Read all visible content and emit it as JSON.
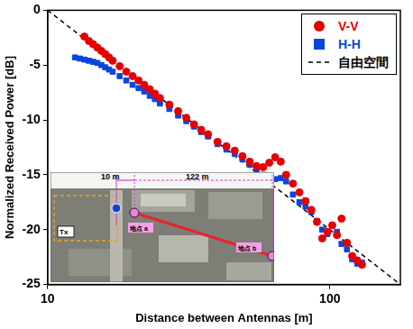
{
  "chart_data": {
    "type": "scatter",
    "x_label": "Distance between Antennas [m]",
    "y_label": "Normalized Received Power [dB]",
    "log": "x",
    "grid": false,
    "legend": "upper right",
    "xlim": [
      10,
      177.8
    ],
    "xticks": [
      10,
      100
    ],
    "ylim": [
      -25,
      0
    ],
    "yticks": [
      -25,
      -20,
      -15,
      -10,
      -5,
      0
    ],
    "annotations": [
      "10 m",
      "122 m",
      "Tx",
      "地点 a",
      "地点 b"
    ],
    "series": [
      {
        "name": "V-V",
        "color": "#e60000",
        "marker": "circle",
        "x": [
          13.5,
          14,
          14.5,
          15,
          15.5,
          16,
          16.5,
          17,
          18,
          19,
          20,
          21,
          22,
          23,
          24,
          25,
          27,
          29,
          31,
          33,
          35,
          37,
          40,
          43,
          46,
          49,
          52,
          55,
          58,
          61,
          64,
          67,
          70,
          74,
          78,
          82,
          86,
          90,
          94,
          98,
          102,
          106,
          110,
          115,
          120,
          125,
          130
        ],
        "values": [
          -2.4,
          -2.8,
          -3.1,
          -3.4,
          -3.7,
          -4.0,
          -4.3,
          -4.6,
          -5.1,
          -5.6,
          -6.0,
          -6.4,
          -6.8,
          -7.2,
          -7.6,
          -8.0,
          -8.6,
          -9.2,
          -9.8,
          -10.4,
          -10.9,
          -11.3,
          -12.0,
          -12.4,
          -12.8,
          -13.3,
          -13.8,
          -14.2,
          -14.3,
          -13.9,
          -13.4,
          -13.8,
          -15.0,
          -15.8,
          -16.6,
          -17.4,
          -18.2,
          -19.3,
          -20.8,
          -20.2,
          -19.6,
          -20.5,
          -19.0,
          -21.2,
          -22.4,
          -22.8,
          -23.2
        ]
      },
      {
        "name": "H-H",
        "color": "#0a46dc",
        "marker": "square",
        "x": [
          12.5,
          13,
          13.5,
          14,
          14.5,
          15,
          15.5,
          16,
          16.5,
          17,
          18,
          19,
          20,
          21,
          22,
          23,
          24,
          25,
          27,
          29,
          31,
          33,
          35,
          37,
          40,
          43,
          46,
          49,
          52,
          55,
          58,
          61,
          64,
          67,
          70,
          74,
          78,
          82,
          86,
          90,
          94,
          98,
          102,
          106,
          110,
          115,
          120,
          125,
          130
        ],
        "values": [
          -4.3,
          -4.4,
          -4.5,
          -4.6,
          -4.7,
          -4.8,
          -5.0,
          -5.2,
          -5.4,
          -5.6,
          -6.0,
          -6.4,
          -6.8,
          -7.1,
          -7.4,
          -7.8,
          -8.1,
          -8.5,
          -9.0,
          -9.6,
          -10.1,
          -10.6,
          -11.1,
          -11.5,
          -12.2,
          -12.7,
          -13.1,
          -13.6,
          -14.1,
          -14.6,
          -15.0,
          -15.3,
          -15.4,
          -15.3,
          -15.6,
          -16.8,
          -17.5,
          -17.9,
          -18.4,
          -19.2,
          -20.0,
          -20.4,
          -19.6,
          -20.2,
          -21.3,
          -21.8,
          -22.7,
          -23.1,
          -23.0
        ]
      },
      {
        "name": "自由空間",
        "color": "#000000",
        "type": "line",
        "line_style": "dashed",
        "x": [
          10,
          177.8
        ],
        "values": [
          0,
          -25
        ]
      }
    ]
  }
}
